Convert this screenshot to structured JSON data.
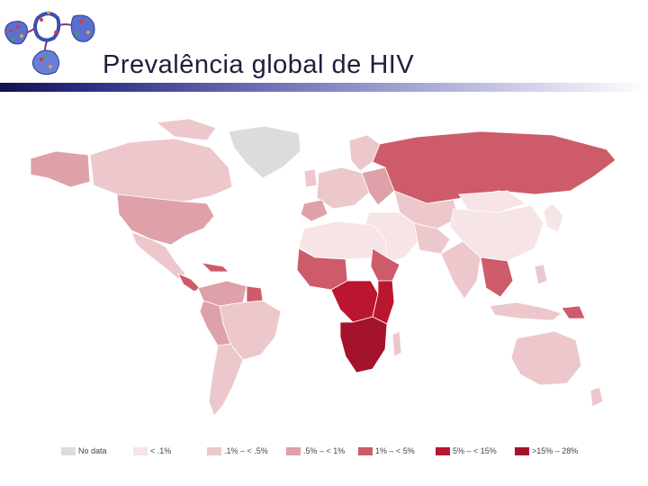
{
  "slide": {
    "title": "Prevalência global de HIV"
  },
  "legend": [
    {
      "label": "No data",
      "color": "#dcdcdc",
      "icon": "no-data-swatch"
    },
    {
      "label": "< .1%",
      "color": "#f6e4e6",
      "icon": "lt-01-swatch"
    },
    {
      "label": ".1% – < .5%",
      "color": "#ecc8cc",
      "icon": "01-05-swatch"
    },
    {
      "label": ".5% – < 1%",
      "color": "#dea1aa",
      "icon": "05-1-swatch"
    },
    {
      "label": "1% – < 5%",
      "color": "#cd5b69",
      "icon": "1-5-swatch"
    },
    {
      "label": "5% – < 15%",
      "color": "#bb1630",
      "icon": "5-15-swatch"
    },
    {
      "label": ">15% – 28%",
      "color": "#a3132b",
      "icon": "15-28-swatch"
    }
  ]
}
